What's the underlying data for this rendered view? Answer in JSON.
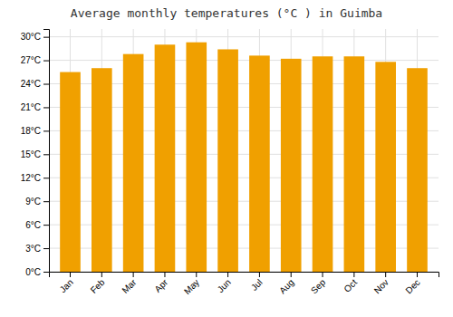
{
  "chart_data": {
    "type": "bar",
    "title": "Average monthly temperatures (°C ) in Guimba",
    "categories": [
      "Jan",
      "Feb",
      "Mar",
      "Apr",
      "May",
      "Jun",
      "Jul",
      "Aug",
      "Sep",
      "Oct",
      "Nov",
      "Dec"
    ],
    "values": [
      25.5,
      26.0,
      27.8,
      29.0,
      29.3,
      28.4,
      27.6,
      27.2,
      27.5,
      27.5,
      26.8,
      26.0
    ],
    "color": "#F0A000",
    "ylim": [
      0,
      31
    ],
    "yticks": [
      {
        "value": 0,
        "label": "0°C"
      },
      {
        "value": 3,
        "label": "3°C"
      },
      {
        "value": 6,
        "label": "6°C"
      },
      {
        "value": 9,
        "label": "9°C"
      },
      {
        "value": 12,
        "label": "12°C"
      },
      {
        "value": 15,
        "label": "15°C"
      },
      {
        "value": 18,
        "label": "18°C"
      },
      {
        "value": 21,
        "label": "21°C"
      },
      {
        "value": 24,
        "label": "24°C"
      },
      {
        "value": 27,
        "label": "27°C"
      },
      {
        "value": 30,
        "label": "30°C"
      }
    ],
    "grid": true
  }
}
